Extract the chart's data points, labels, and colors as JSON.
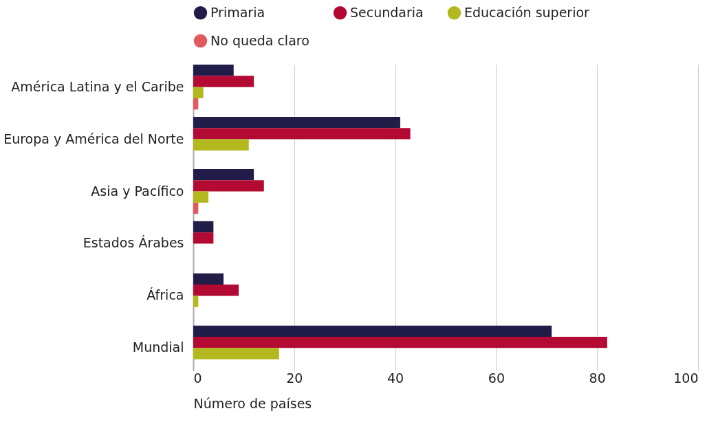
{
  "chart_data": {
    "type": "bar",
    "orientation": "horizontal",
    "xlabel": "Número de países",
    "categories": [
      "América Latina y el Caribe",
      "Europa y América del Norte",
      "Asia y Pacífico",
      "Estados Árabes",
      "África",
      "Mundial"
    ],
    "series": [
      {
        "name": "Primaria",
        "color": "#211c48",
        "values": [
          8,
          41,
          12,
          4,
          6,
          71
        ]
      },
      {
        "name": "Secundaria",
        "color": "#b30a33",
        "values": [
          12,
          43,
          14,
          4,
          9,
          82
        ]
      },
      {
        "name": "Educación superior",
        "color": "#b3b81e",
        "values": [
          2,
          11,
          3,
          null,
          1,
          17
        ]
      },
      {
        "name": "No queda claro",
        "color": "#e05a5e",
        "values": [
          1,
          null,
          1,
          null,
          null,
          null
        ]
      }
    ],
    "xlim": [
      0,
      100
    ],
    "xticks": [
      0,
      20,
      40,
      60,
      80,
      100
    ],
    "grid": "x",
    "legend": "top"
  }
}
